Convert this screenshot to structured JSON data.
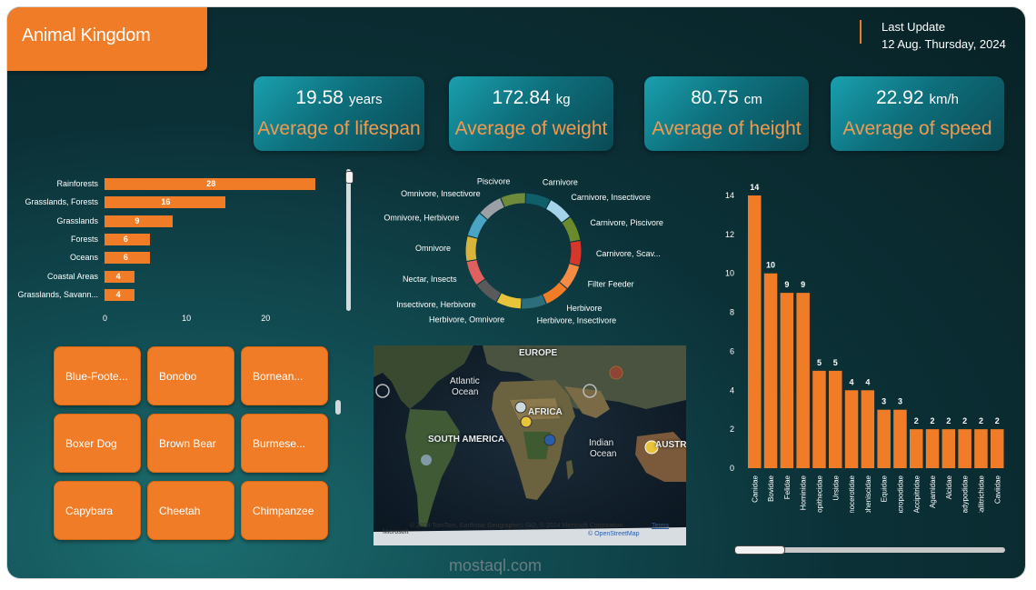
{
  "header": {
    "title": "Animal Kingdom",
    "last_update_label": "Last Update",
    "last_update_date": "12 Aug. Thursday, 2024"
  },
  "kpis": [
    {
      "value": "19.58",
      "unit": "years",
      "label": "Average of lifespan"
    },
    {
      "value": "172.84",
      "unit": "kg",
      "label": "Average of weight"
    },
    {
      "value": "80.75",
      "unit": "cm",
      "label": "Average of height"
    },
    {
      "value": "22.92",
      "unit": "km/h",
      "label": "Average of speed"
    }
  ],
  "habitat_chart": {
    "type": "bar",
    "orientation": "horizontal",
    "categories": [
      "Rainforests",
      "Grasslands, Forests",
      "Grasslands",
      "Forests",
      "Oceans",
      "Coastal Areas",
      "Grasslands, Savann..."
    ],
    "values": [
      28,
      16,
      9,
      6,
      6,
      4,
      4
    ],
    "xticks": [
      "0",
      "10",
      "20"
    ],
    "xlim": [
      0,
      30
    ],
    "color": "#f07c27"
  },
  "diet_donut": {
    "type": "pie",
    "labels": [
      "Carnivore",
      "Carnivore, Insectivore",
      "Carnivore, Piscivore",
      "Carnivore, Scav...",
      "Filter Feeder",
      "Herbivore",
      "Herbivore, Insectivore",
      "Herbivore, Omnivore",
      "Insectivore, Herbivore",
      "Nectar, Insects",
      "Omnivore",
      "Omnivore, Herbivore",
      "Omnivore, Insectivore",
      "Piscivore"
    ],
    "colors": [
      "#0f5f6a",
      "#a5d3ec",
      "#6b8a2c",
      "#d6372b",
      "#f58b45",
      "#f07c27",
      "#2d6e7d",
      "#e8c43a",
      "#5a5a5a",
      "#e06060",
      "#d8b43a",
      "#4aa5c5",
      "#9aa0a6",
      "#6f8a3a"
    ]
  },
  "animals": [
    "Blue-Foote...",
    "Bonobo",
    "Bornean...",
    "Boxer Dog",
    "Brown Bear",
    "Burmese...",
    "Capybara",
    "Cheetah",
    "Chimpanzee"
  ],
  "map": {
    "labels": [
      "EUROPE",
      "Atlantic",
      "Ocean",
      "AFRICA",
      "SOUTH AMERICA",
      "Indian",
      "Ocean",
      "AUSTRAL"
    ],
    "attribution": "© 2024 TomTom, Earthstar Geographics SIO, © 2024 Microsoft Corporation,",
    "terms": "Terms",
    "osm": "© OpenStreetMap",
    "brand": "Microsoft"
  },
  "chart_data": {
    "type": "bar",
    "categories": [
      "Canidae",
      "Bovidae",
      "Felidae",
      "Hominidae",
      "Cercopithecidae",
      "Ursidae",
      "Rhinocerotidae",
      "Spheniscidae",
      "Equidae",
      "Macropodidae",
      "Accipitridae",
      "Agamidae",
      "Alcidae",
      "Bradypodidae",
      "Callitrichidae",
      "Caviidae"
    ],
    "values": [
      14,
      10,
      9,
      9,
      5,
      5,
      4,
      4,
      3,
      3,
      2,
      2,
      2,
      2,
      2,
      2
    ],
    "yticks": [
      "0",
      "2",
      "4",
      "6",
      "8",
      "10",
      "12",
      "14"
    ],
    "ylim": [
      0,
      14
    ],
    "color": "#f07c27"
  },
  "watermark": "mostaql.com"
}
